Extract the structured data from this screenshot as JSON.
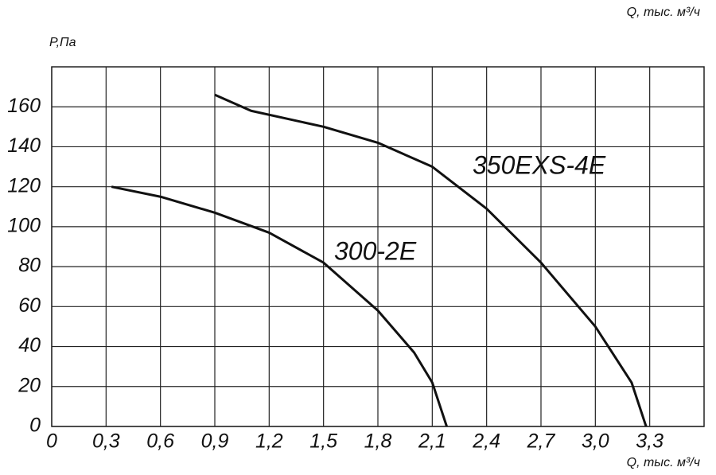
{
  "chart_data": {
    "type": "line",
    "y_label": "P,Па",
    "x_label": "Q, тыс. м³/ч",
    "xlim": [
      0,
      3.6
    ],
    "ylim": [
      0,
      180
    ],
    "xticks": [
      0,
      {
        "value": 0.3,
        "label": "0,3"
      },
      {
        "value": 0.6,
        "label": "0,6"
      },
      {
        "value": 0.9,
        "label": "0,9"
      },
      {
        "value": 1.2,
        "label": "1,2"
      },
      {
        "value": 1.5,
        "label": "1,5"
      },
      {
        "value": 1.8,
        "label": "1,8"
      },
      {
        "value": 2.1,
        "label": "2,1"
      },
      {
        "value": 2.4,
        "label": "2,4"
      },
      {
        "value": 2.7,
        "label": "2,7"
      },
      {
        "value": 3.0,
        "label": "3,0"
      },
      {
        "value": 3.3,
        "label": "3,3"
      }
    ],
    "yticks": [
      0,
      20,
      40,
      60,
      80,
      100,
      120,
      140,
      160
    ],
    "grid": true,
    "series": [
      {
        "name": "300-2E",
        "color": "#111111",
        "x": [
          0.33,
          0.6,
          0.9,
          1.2,
          1.5,
          1.8,
          2.0,
          2.1,
          2.18
        ],
        "values": [
          120,
          115,
          107,
          97,
          82,
          58,
          37,
          22,
          0
        ]
      },
      {
        "name": "350EXS-4E",
        "color": "#111111",
        "x": [
          0.9,
          1.1,
          1.5,
          1.8,
          2.1,
          2.4,
          2.7,
          3.0,
          3.2,
          3.28
        ],
        "values": [
          166,
          158,
          150,
          142,
          130,
          109,
          82,
          50,
          22,
          0
        ]
      }
    ]
  }
}
